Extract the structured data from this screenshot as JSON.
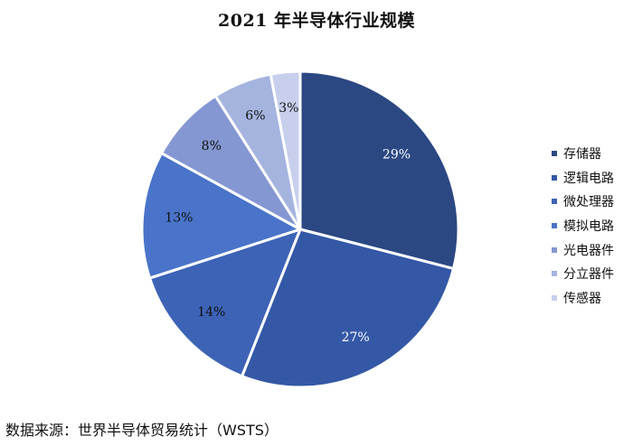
{
  "chart_data": {
    "type": "pie",
    "title": "2021 年半导体行业规模",
    "categories": [
      "存储器",
      "逻辑电路",
      "微处理器",
      "模拟电路",
      "光电器件",
      "分立器件",
      "传感器"
    ],
    "values": [
      29,
      27,
      14,
      13,
      8,
      6,
      3
    ],
    "labels": [
      "29%",
      "27%",
      "14%",
      "13%",
      "8%",
      "6%",
      "3%"
    ],
    "colors": [
      "#2b4883",
      "#3458a6",
      "#3d63b6",
      "#4a74c9",
      "#8497d2",
      "#a5b4df",
      "#c7cfec"
    ],
    "label_colors": [
      "#ffffff",
      "#ffffff",
      "#111111",
      "#111111",
      "#111111",
      "#111111",
      "#111111"
    ],
    "legend_position": "right",
    "start_angle": "top, clockwise"
  },
  "source": "数据来源：世界半导体贸易统计（WSTS）"
}
